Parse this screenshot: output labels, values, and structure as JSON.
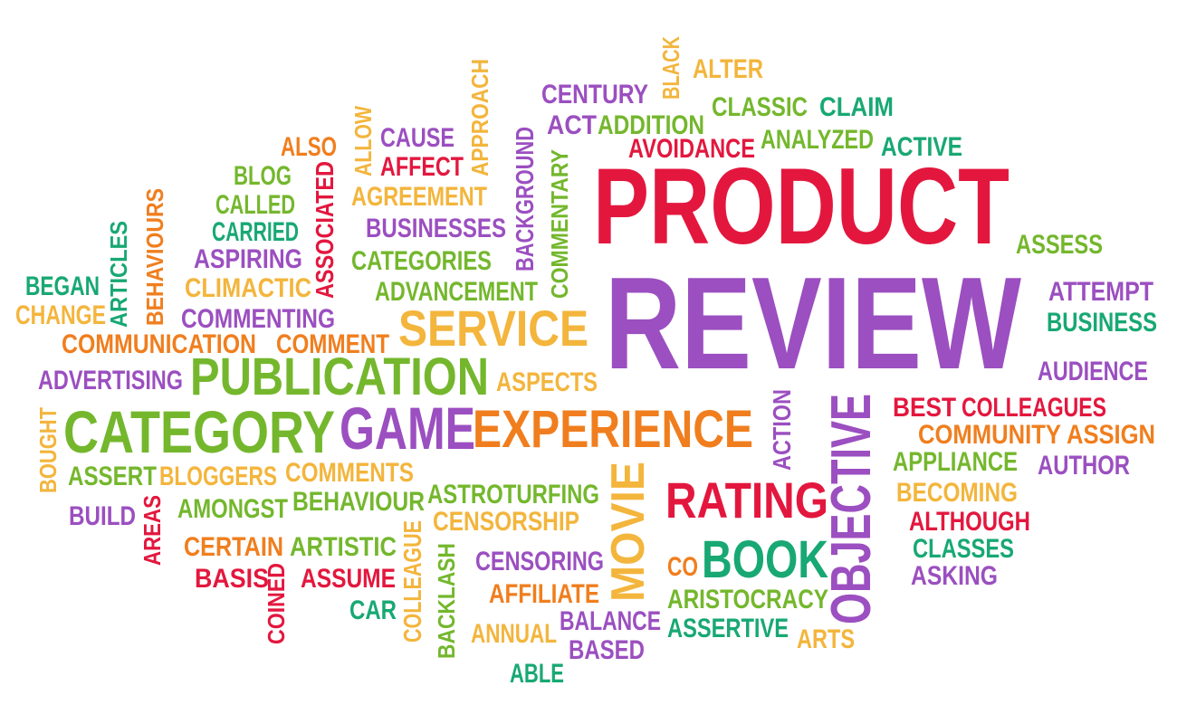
{
  "palette": {
    "red": "#e3173e",
    "purple": "#9b4fc0",
    "orange": "#f07e1e",
    "yellow": "#f3b53c",
    "green": "#74b72d",
    "teal": "#18a874"
  },
  "words": {
    "product": {
      "text": "PRODUCT",
      "color": "#e3173e"
    },
    "review": {
      "text": "REVIEW",
      "color": "#9b4fc0"
    },
    "publication": {
      "text": "PUBLICATION",
      "color": "#74b72d"
    },
    "category": {
      "text": "CATEGORY",
      "color": "#74b72d"
    },
    "game": {
      "text": "GAME",
      "color": "#9b4fc0"
    },
    "experience": {
      "text": "EXPERIENCE",
      "color": "#f07e1e"
    },
    "service": {
      "text": "SERVICE",
      "color": "#f3b53c"
    },
    "rating": {
      "text": "RATING",
      "color": "#e3173e"
    },
    "book": {
      "text": "BOOK",
      "color": "#18a874"
    },
    "objective": {
      "text": "OBJECTIVE",
      "color": "#9b4fc0"
    },
    "movie": {
      "text": "MOVIE",
      "color": "#f3b53c"
    },
    "action": {
      "text": "ACTION",
      "color": "#9b4fc0"
    },
    "alter": {
      "text": "ALTER",
      "color": "#f3b53c"
    },
    "black": {
      "text": "BLACK",
      "color": "#f3b53c"
    },
    "century": {
      "text": "CENTURY",
      "color": "#9b4fc0"
    },
    "act": {
      "text": "ACT",
      "color": "#9b4fc0"
    },
    "addition": {
      "text": "ADDITION",
      "color": "#74b72d"
    },
    "classic": {
      "text": "CLASSIC",
      "color": "#74b72d"
    },
    "claim": {
      "text": "CLAIM",
      "color": "#18a874"
    },
    "avoidance": {
      "text": "AVOIDANCE",
      "color": "#e3173e"
    },
    "analyzed": {
      "text": "ANALYZED",
      "color": "#74b72d"
    },
    "active": {
      "text": "ACTIVE",
      "color": "#18a874"
    },
    "approach": {
      "text": "APPROACH",
      "color": "#f3b53c"
    },
    "background": {
      "text": "BACKGROUND",
      "color": "#9b4fc0"
    },
    "commentary": {
      "text": "COMMENTARY",
      "color": "#74b72d"
    },
    "allow": {
      "text": "ALLOW",
      "color": "#f3b53c"
    },
    "cause": {
      "text": "CAUSE",
      "color": "#9b4fc0"
    },
    "affect": {
      "text": "AFFECT",
      "color": "#e3173e"
    },
    "also": {
      "text": "ALSO",
      "color": "#f07e1e"
    },
    "associated": {
      "text": "ASSOCIATED",
      "color": "#e3173e"
    },
    "agreement": {
      "text": "AGREEMENT",
      "color": "#f3b53c"
    },
    "blog": {
      "text": "BLOG",
      "color": "#74b72d"
    },
    "called": {
      "text": "CALLED",
      "color": "#74b72d"
    },
    "carried": {
      "text": "CARRIED",
      "color": "#18a874"
    },
    "businesses": {
      "text": "BUSINESSES",
      "color": "#9b4fc0"
    },
    "behaviours": {
      "text": "BEHAVIOURS",
      "color": "#f07e1e"
    },
    "articles": {
      "text": "ARTICLES",
      "color": "#18a874"
    },
    "aspiring": {
      "text": "ASPIRING",
      "color": "#9b4fc0"
    },
    "categories": {
      "text": "CATEGORIES",
      "color": "#74b72d"
    },
    "began": {
      "text": "BEGAN",
      "color": "#18a874"
    },
    "climactic": {
      "text": "CLIMACTIC",
      "color": "#f3b53c"
    },
    "advancement": {
      "text": "ADVANCEMENT",
      "color": "#74b72d"
    },
    "change": {
      "text": "CHANGE",
      "color": "#f3b53c"
    },
    "commenting": {
      "text": "COMMENTING",
      "color": "#9b4fc0"
    },
    "communication": {
      "text": "COMMUNICATION",
      "color": "#f07e1e"
    },
    "comment": {
      "text": "COMMENT",
      "color": "#f07e1e"
    },
    "advertising": {
      "text": "ADVERTISING",
      "color": "#9b4fc0"
    },
    "aspects": {
      "text": "ASPECTS",
      "color": "#f3b53c"
    },
    "bought": {
      "text": "BOUGHT",
      "color": "#f3b53c"
    },
    "assert": {
      "text": "ASSERT",
      "color": "#74b72d"
    },
    "bloggers": {
      "text": "BLOGGERS",
      "color": "#f3b53c"
    },
    "comments": {
      "text": "COMMENTS",
      "color": "#f3b53c"
    },
    "build": {
      "text": "BUILD",
      "color": "#9b4fc0"
    },
    "areas": {
      "text": "AREAS",
      "color": "#e3173e"
    },
    "amongst": {
      "text": "AMONGST",
      "color": "#74b72d"
    },
    "behaviour": {
      "text": "BEHAVIOUR",
      "color": "#74b72d"
    },
    "astroturfing": {
      "text": "ASTROTURFING",
      "color": "#74b72d"
    },
    "censorship": {
      "text": "CENSORSHIP",
      "color": "#f3b53c"
    },
    "certain": {
      "text": "CERTAIN",
      "color": "#f07e1e"
    },
    "artistic": {
      "text": "ARTISTIC",
      "color": "#74b72d"
    },
    "colleague": {
      "text": "COLLEAGUE",
      "color": "#f3b53c"
    },
    "backlash": {
      "text": "BACKLASH",
      "color": "#74b72d"
    },
    "censoring": {
      "text": "CENSORING",
      "color": "#9b4fc0"
    },
    "basis": {
      "text": "BASIS",
      "color": "#e3173e"
    },
    "coined": {
      "text": "COINED",
      "color": "#e3173e"
    },
    "assume": {
      "text": "ASSUME",
      "color": "#e3173e"
    },
    "affiliate": {
      "text": "AFFILIATE",
      "color": "#f07e1e"
    },
    "car": {
      "text": "CAR",
      "color": "#18a874"
    },
    "annual": {
      "text": "ANNUAL",
      "color": "#f3b53c"
    },
    "balance": {
      "text": "BALANCE",
      "color": "#9b4fc0"
    },
    "based": {
      "text": "BASED",
      "color": "#9b4fc0"
    },
    "able": {
      "text": "ABLE",
      "color": "#18a874"
    },
    "co": {
      "text": "CO",
      "color": "#f07e1e"
    },
    "aristocracy": {
      "text": "ARISTOCRACY",
      "color": "#74b72d"
    },
    "assertive": {
      "text": "ASSERTIVE",
      "color": "#18a874"
    },
    "arts": {
      "text": "ARTS",
      "color": "#f3b53c"
    },
    "assess": {
      "text": "ASSESS",
      "color": "#74b72d"
    },
    "attempt": {
      "text": "ATTEMPT",
      "color": "#9b4fc0"
    },
    "business": {
      "text": "BUSINESS",
      "color": "#18a874"
    },
    "audience": {
      "text": "AUDIENCE",
      "color": "#9b4fc0"
    },
    "best": {
      "text": "BEST",
      "color": "#e3173e"
    },
    "colleagues": {
      "text": "COLLEAGUES",
      "color": "#e3173e"
    },
    "community": {
      "text": "COMMUNITY",
      "color": "#f07e1e"
    },
    "assign": {
      "text": "ASSIGN",
      "color": "#f07e1e"
    },
    "appliance": {
      "text": "APPLIANCE",
      "color": "#74b72d"
    },
    "author": {
      "text": "AUTHOR",
      "color": "#9b4fc0"
    },
    "becoming": {
      "text": "BECOMING",
      "color": "#f3b53c"
    },
    "although": {
      "text": "ALTHOUGH",
      "color": "#e3173e"
    },
    "classes": {
      "text": "CLASSES",
      "color": "#18a874"
    },
    "asking": {
      "text": "ASKING",
      "color": "#9b4fc0"
    }
  }
}
